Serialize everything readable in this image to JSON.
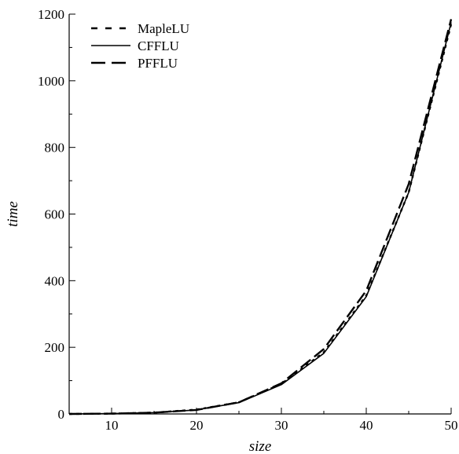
{
  "chart_data": {
    "type": "line",
    "title": "",
    "xlabel": "size",
    "ylabel": "time",
    "xlim": [
      5,
      50
    ],
    "ylim": [
      0,
      1200
    ],
    "xticks": [
      10,
      20,
      30,
      40,
      50
    ],
    "yticks": [
      0,
      200,
      400,
      600,
      800,
      1000,
      1200
    ],
    "xtick_labels": [
      "10",
      "20",
      "30",
      "40",
      "50"
    ],
    "ytick_labels": [
      "0",
      "200",
      "400",
      "600",
      "800",
      "1000",
      "1200"
    ],
    "grid": false,
    "legend_position": "top-left",
    "series": [
      {
        "name": "MapleLU",
        "style": "dotted",
        "color": "#000000",
        "x": [
          5,
          10,
          15,
          20,
          25,
          30,
          35,
          40,
          45,
          50
        ],
        "y": [
          0,
          1,
          4,
          13,
          35,
          90,
          185,
          355,
          665,
          1170
        ]
      },
      {
        "name": "CFFLU",
        "style": "solid",
        "color": "#000000",
        "x": [
          5,
          10,
          15,
          20,
          25,
          30,
          35,
          40,
          45,
          50
        ],
        "y": [
          0,
          1,
          4,
          12,
          34,
          88,
          182,
          352,
          665,
          1175
        ]
      },
      {
        "name": "PFFLU",
        "style": "dashed",
        "color": "#000000",
        "x": [
          5,
          10,
          15,
          20,
          25,
          30,
          35,
          40,
          45,
          50
        ],
        "y": [
          0,
          1,
          4,
          12,
          35,
          92,
          195,
          370,
          690,
          1185
        ]
      }
    ]
  }
}
